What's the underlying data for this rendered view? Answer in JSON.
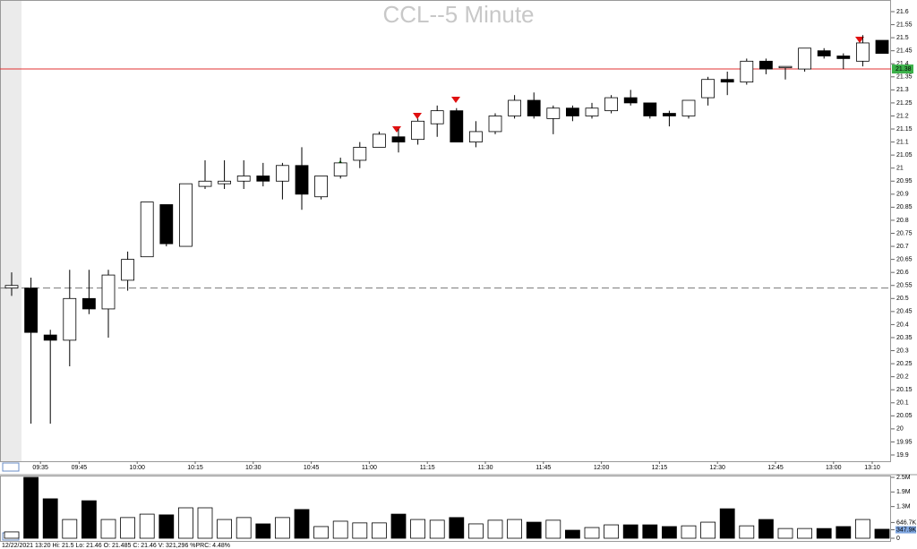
{
  "chart_data": {
    "type": "candlestick",
    "title": "CCL--5 Minute",
    "categories": [
      null,
      null,
      "09:35",
      null,
      "09:45",
      null,
      null,
      "10:00",
      null,
      null,
      "10:15",
      null,
      null,
      "10:30",
      null,
      null,
      "10:45",
      null,
      null,
      "11:00",
      null,
      null,
      "11:15",
      null,
      null,
      "11:30",
      null,
      null,
      "11:45",
      null,
      null,
      "12:00",
      null,
      null,
      "12:15",
      null,
      null,
      "12:30",
      null,
      null,
      "12:45",
      null,
      null,
      "13:00",
      null,
      "13:10"
    ],
    "open": [
      20.54,
      20.54,
      20.36,
      20.34,
      20.5,
      20.46,
      20.57,
      20.66,
      20.86,
      20.7,
      20.93,
      20.94,
      20.95,
      20.97,
      20.95,
      21.01,
      20.89,
      20.97,
      21.03,
      21.08,
      21.12,
      21.11,
      21.17,
      21.22,
      21.1,
      21.14,
      21.2,
      21.26,
      21.19,
      21.23,
      21.2,
      21.22,
      21.27,
      21.25,
      21.21,
      21.2,
      21.27,
      21.34,
      21.33,
      21.41,
      21.39,
      21.38,
      21.45,
      21.43,
      21.41,
      21.49
    ],
    "high": [
      20.6,
      20.58,
      20.38,
      20.61,
      20.61,
      20.61,
      20.68,
      20.87,
      20.86,
      20.94,
      21.03,
      21.03,
      21.03,
      21.02,
      21.02,
      21.08,
      20.97,
      21.04,
      21.1,
      21.14,
      21.15,
      21.19,
      21.24,
      21.23,
      21.18,
      21.21,
      21.28,
      21.29,
      21.24,
      21.24,
      21.25,
      21.28,
      21.3,
      21.25,
      21.22,
      21.26,
      21.35,
      21.37,
      21.42,
      21.42,
      21.39,
      21.46,
      21.46,
      21.44,
      21.51,
      21.49
    ],
    "low": [
      20.51,
      20.02,
      20.02,
      20.24,
      20.44,
      20.35,
      20.53,
      20.66,
      20.7,
      20.7,
      20.92,
      20.92,
      20.92,
      20.93,
      20.88,
      20.84,
      20.88,
      20.96,
      21.0,
      21.08,
      21.06,
      21.09,
      21.12,
      21.1,
      21.08,
      21.13,
      21.19,
      21.19,
      21.13,
      21.18,
      21.19,
      21.21,
      21.24,
      21.19,
      21.16,
      21.19,
      21.24,
      21.28,
      21.32,
      21.36,
      21.34,
      21.37,
      21.42,
      21.38,
      21.39,
      21.44
    ],
    "close": [
      20.55,
      20.37,
      20.34,
      20.5,
      20.46,
      20.59,
      20.65,
      20.87,
      20.71,
      20.94,
      20.95,
      20.95,
      20.97,
      20.95,
      21.01,
      20.9,
      20.97,
      21.02,
      21.08,
      21.13,
      21.1,
      21.18,
      21.22,
      21.1,
      21.14,
      21.2,
      21.26,
      21.2,
      21.23,
      21.2,
      21.23,
      21.27,
      21.25,
      21.2,
      21.2,
      21.26,
      21.34,
      21.33,
      21.41,
      21.38,
      21.39,
      21.46,
      21.43,
      21.42,
      21.48,
      21.44
    ],
    "ylim": [
      19.9,
      21.6
    ],
    "yticks": [
      19.9,
      19.95,
      20,
      20.05,
      20.1,
      20.15,
      20.2,
      20.25,
      20.3,
      20.35,
      20.4,
      20.45,
      20.5,
      20.55,
      20.6,
      20.65,
      20.7,
      20.75,
      20.8,
      20.85,
      20.9,
      20.95,
      21,
      21.05,
      21.1,
      21.15,
      21.2,
      21.25,
      21.3,
      21.35,
      21.4,
      21.45,
      21.5,
      21.55,
      21.6
    ],
    "last_price": 21.38,
    "reference_line": 20.54,
    "volume": {
      "values": [
        260000,
        2500000,
        1620000,
        770000,
        1540000,
        770000,
        850000,
        990000,
        960000,
        1250000,
        1250000,
        770000,
        850000,
        590000,
        850000,
        1180000,
        480000,
        700000,
        630000,
        630000,
        990000,
        770000,
        740000,
        850000,
        590000,
        740000,
        770000,
        660000,
        740000,
        330000,
        440000,
        550000,
        550000,
        550000,
        480000,
        510000,
        660000,
        1210000,
        510000,
        770000,
        400000,
        400000,
        400000,
        480000,
        770000,
        370000
      ],
      "ylim": [
        0,
        2500000
      ],
      "yticks": [
        0,
        {
          "value": 347900,
          "label": "347.9K"
        },
        {
          "value": 646700,
          "label": "646.7K"
        },
        {
          "value": 1300000,
          "label": "1.3M"
        },
        {
          "value": 1900000,
          "label": "1.9M"
        },
        {
          "value": 2500000,
          "label": "2.5M"
        }
      ]
    },
    "status": "12/22/2021 13:20  Hi: 21.5  Lo: 21.46  O: 21.485  C: 21.46  V: 321,296  %PRC: 4.48%"
  }
}
